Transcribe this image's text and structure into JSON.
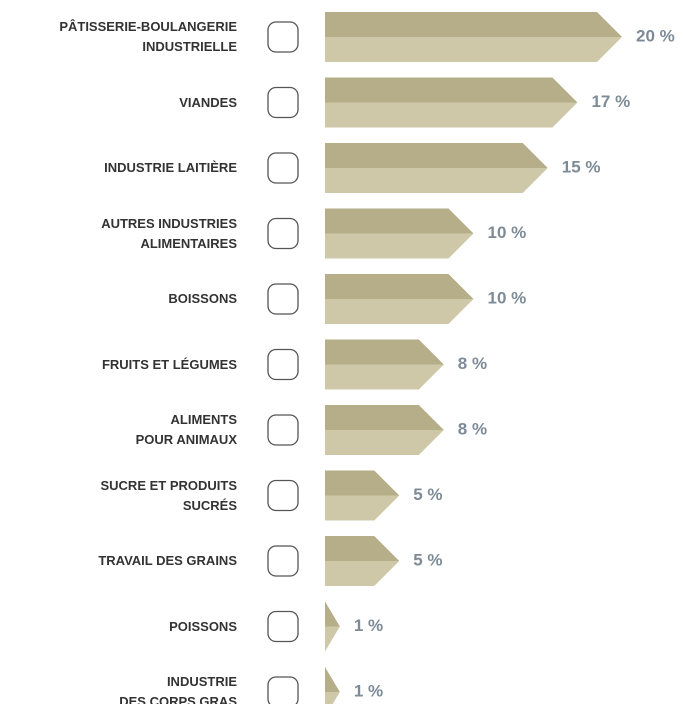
{
  "chart_data": {
    "type": "bar",
    "categories": [
      "PÂTISSERIE-BOULANGERIE\nINDUSTRIELLE",
      "VIANDES",
      "INDUSTRIE LAITIÈRE",
      "AUTRES INDUSTRIES\nALIMENTAIRES",
      "BOISSONS",
      "FRUITS ET LÉGUMES",
      "ALIMENTS\nPOUR ANIMAUX",
      "SUCRE ET PRODUITS\nSUCRÉS",
      "TRAVAIL DES GRAINS",
      "POISSONS",
      "INDUSTRIE\nDES CORPS GRAS"
    ],
    "values": [
      20,
      17,
      15,
      10,
      10,
      8,
      8,
      5,
      5,
      1,
      1
    ],
    "value_labels": [
      "20 %",
      "17 %",
      "15 %",
      "10 %",
      "10 %",
      "8 %",
      "8 %",
      "5 %",
      "5 %",
      "1 %",
      "1 %"
    ],
    "colors": [
      "#b6ae89",
      "#cfc8a8"
    ],
    "label_color": "#7d8b97",
    "xlim": [
      0,
      20
    ]
  }
}
